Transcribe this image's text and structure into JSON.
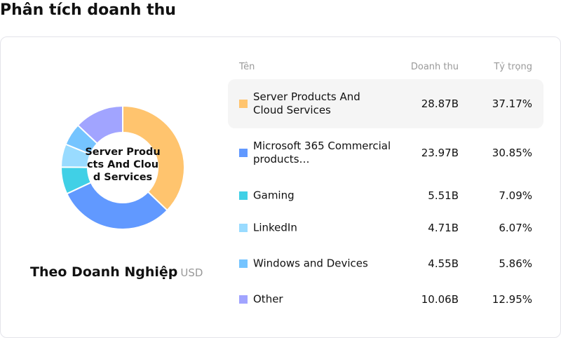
{
  "title": "Phân tích doanh thu",
  "subtitle": "Theo Doanh Nghiệp",
  "currency": "USD",
  "center_label": "Server Products And Cloud Services",
  "headers": {
    "name": "Tên",
    "revenue": "Doanh thu",
    "share": "Tỷ trọng"
  },
  "chart_data": {
    "type": "pie",
    "categories": [
      "Server Products And Cloud Services",
      "Microsoft 365 Commercial products…",
      "Gaming",
      "LinkedIn",
      "Windows and Devices",
      "Other"
    ],
    "values": [
      28.87,
      23.97,
      5.51,
      4.71,
      4.55,
      10.06
    ],
    "colors": [
      "#FFC46E",
      "#6199FF",
      "#40D0E6",
      "#99DBFF",
      "#75C4FF",
      "#A1A4FF"
    ]
  },
  "rows": [
    {
      "name": "Server Products And Cloud Services",
      "revenue": "28.87B",
      "share": "37.17%"
    },
    {
      "name": "Microsoft 365 Commercial products…",
      "revenue": "23.97B",
      "share": "30.85%"
    },
    {
      "name": "Gaming",
      "revenue": "5.51B",
      "share": "7.09%"
    },
    {
      "name": "LinkedIn",
      "revenue": "4.71B",
      "share": "6.07%"
    },
    {
      "name": "Windows and Devices",
      "revenue": "4.55B",
      "share": "5.86%"
    },
    {
      "name": "Other",
      "revenue": "10.06B",
      "share": "12.95%"
    }
  ]
}
